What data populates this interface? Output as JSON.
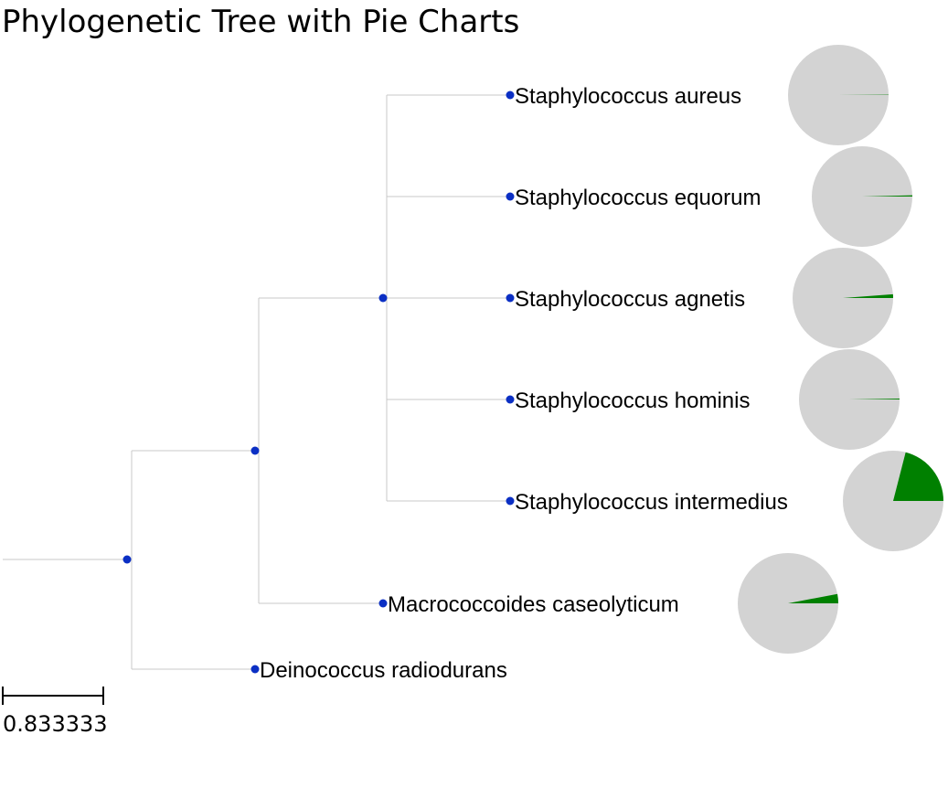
{
  "title": "Phylogenetic Tree with Pie Charts",
  "colors": {
    "branch": "#c8c8c8",
    "node": "#0b2fc4",
    "pie_base": "#d3d3d3",
    "pie_slice": "#008000"
  },
  "scale_bar": {
    "label": "0.833333",
    "length": 0.833333
  },
  "leaves": [
    {
      "name": "Staphylococcus aureus",
      "pie_fraction": 0.001
    },
    {
      "name": "Staphylococcus equorum",
      "pie_fraction": 0.004
    },
    {
      "name": "Staphylococcus agnetis",
      "pie_fraction": 0.012
    },
    {
      "name": "Staphylococcus hominis",
      "pie_fraction": 0.003
    },
    {
      "name": "Staphylococcus intermedius",
      "pie_fraction": 0.21
    },
    {
      "name": "Macrococcoides caseolyticum",
      "pie_fraction": 0.03
    },
    {
      "name": "Deinococcus radiodurans"
    }
  ]
}
